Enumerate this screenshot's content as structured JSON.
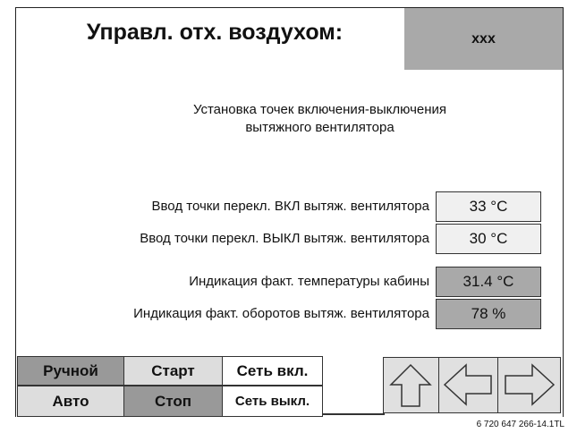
{
  "header": {
    "title": "Управл. отх. воздухом:",
    "status": "xxx"
  },
  "subtitle": [
    "Установка точек включения-выключения",
    "вытяжного вентилятора"
  ],
  "settings": [
    {
      "label": "Ввод точки перекл. ВКЛ вытяж. вентилятора",
      "value": "33 °C"
    },
    {
      "label": "Ввод точки перекл. ВЫКЛ вытяж. вентилятора",
      "value": "30 °C"
    }
  ],
  "indications": [
    {
      "label": "Индикация факт. температуры кабины",
      "value": "31.4 °C"
    },
    {
      "label": "Индикация факт. оборотов вытяж. вентилятора",
      "value": "78 %"
    }
  ],
  "buttons": [
    [
      "Ручной",
      "Старт",
      "Сеть вкл."
    ],
    [
      "Авто",
      "Стоп",
      "Сеть выкл."
    ]
  ],
  "footer": "6 720 647 266-14.1TL"
}
